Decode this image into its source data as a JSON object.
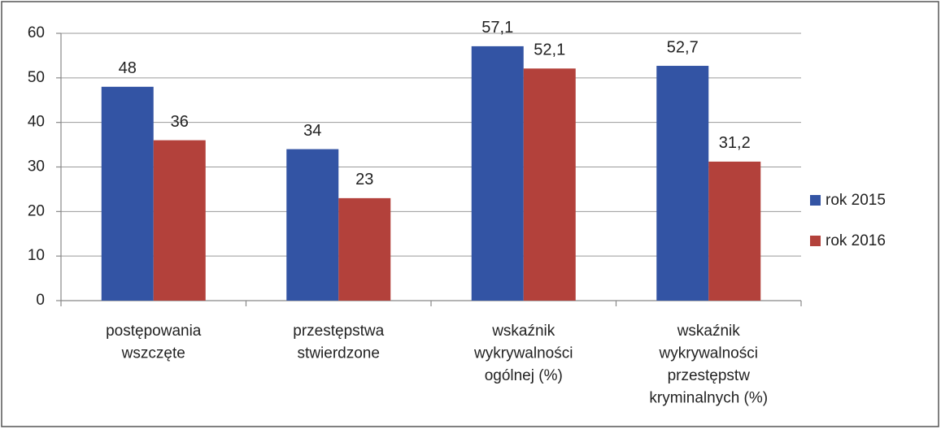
{
  "chart_data": {
    "type": "bar",
    "categories": [
      "postępowania\nwszczęte",
      "przestępstwa\nstwierdzone",
      "wskaźnik\nwykrywalności\nogólnej (%)",
      "wskaźnik\nwykrywalności\nprzestępstw\nkryminalnych (%)"
    ],
    "series": [
      {
        "name": "rok 2015",
        "color": "#3354a4",
        "values": [
          48,
          34,
          57.1,
          52.7
        ],
        "value_labels": [
          "48",
          "34",
          "57,1",
          "52,7"
        ]
      },
      {
        "name": "rok 2016",
        "color": "#b3413b",
        "values": [
          36,
          23,
          52.1,
          31.2
        ],
        "value_labels": [
          "36",
          "23",
          "52,1",
          "31,2"
        ]
      }
    ],
    "ylim": [
      0,
      60
    ],
    "yticks": [
      0,
      10,
      20,
      30,
      40,
      50,
      60
    ],
    "grid": true,
    "legend": "right"
  }
}
